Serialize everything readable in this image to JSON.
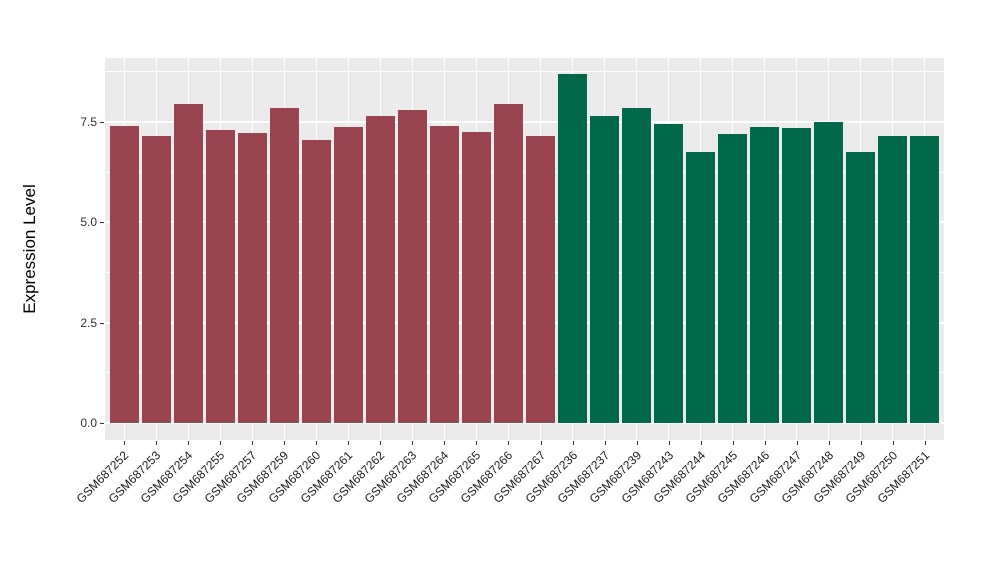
{
  "figure": {
    "ylabel": "Expression Level",
    "panel_background": "#EBEBEB",
    "grid_color": "#FFFFFF",
    "tick_color": "#333333",
    "axis_text_color": "#303030",
    "axis_title_color": "#000000"
  },
  "chart_data": {
    "type": "bar",
    "title": "",
    "xlabel": "",
    "ylabel": "Expression Level",
    "ylim": [
      -0.42,
      9.1
    ],
    "yticks": [
      0.0,
      2.5,
      5.0,
      7.5
    ],
    "ytick_labels": [
      "0.0",
      "2.5",
      "5.0",
      "7.5"
    ],
    "yticks_minor": [
      1.25,
      3.75,
      6.25,
      8.75
    ],
    "grid": true,
    "legend_position": "none",
    "categories": [
      "GSM687252",
      "GSM687253",
      "GSM687254",
      "GSM687255",
      "GSM687257",
      "GSM687259",
      "GSM687260",
      "GSM687261",
      "GSM687262",
      "GSM687263",
      "GSM687264",
      "GSM687265",
      "GSM687266",
      "GSM687267",
      "GSM687236",
      "GSM687237",
      "GSM687239",
      "GSM687243",
      "GSM687244",
      "GSM687245",
      "GSM687246",
      "GSM687247",
      "GSM687248",
      "GSM687249",
      "GSM687250",
      "GSM687251"
    ],
    "values": [
      7.4,
      7.15,
      7.95,
      7.31,
      7.22,
      7.84,
      7.06,
      7.37,
      7.66,
      7.8,
      7.41,
      7.24,
      7.96,
      7.16,
      8.69,
      7.64,
      7.86,
      7.44,
      6.76,
      7.21,
      7.37,
      7.34,
      7.49,
      6.76,
      7.16,
      7.14
    ],
    "groups": [
      "group1",
      "group1",
      "group1",
      "group1",
      "group1",
      "group1",
      "group1",
      "group1",
      "group1",
      "group1",
      "group1",
      "group1",
      "group1",
      "group1",
      "group2",
      "group2",
      "group2",
      "group2",
      "group2",
      "group2",
      "group2",
      "group2",
      "group2",
      "group2",
      "group2",
      "group2"
    ],
    "group_colors": {
      "group1": "#9A4450",
      "group2": "#016949"
    }
  }
}
